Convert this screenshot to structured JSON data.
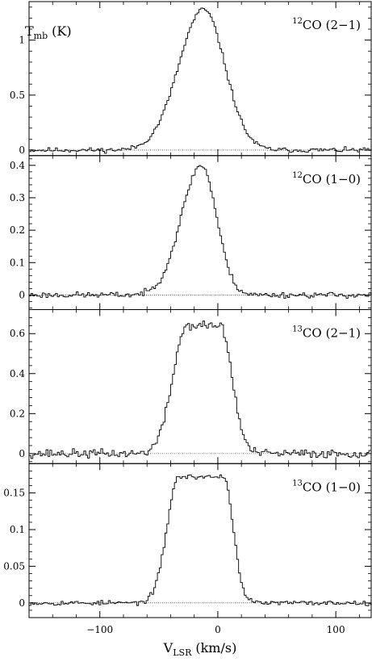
{
  "figure": {
    "ylabel_main": "T",
    "ylabel_sub": "mb",
    "ylabel_unit": "(K)",
    "xlabel_main": "V",
    "xlabel_sub": "LSR",
    "xlabel_unit": "(km/s)"
  },
  "chart_data": [
    {
      "type": "line",
      "title": "",
      "line_name": {
        "iso": "12",
        "species": "CO",
        "trans": "(2−1)"
      },
      "xlabel": "V_LSR (km/s)",
      "ylabel": "T_mb (K)",
      "xlim": [
        -160,
        130
      ],
      "ylim": [
        -0.05,
        1.35
      ],
      "xticks": [
        -100,
        0,
        100
      ],
      "xtick_labels": [
        "−100",
        "0",
        "100"
      ],
      "yticks": [
        0,
        0.5,
        1
      ],
      "ytick_labels": [
        "0",
        "0.5",
        "1"
      ],
      "baseline": 0,
      "profile": {
        "peak": 1.28,
        "center": -12,
        "sigma_left": 21,
        "sigma_right": 18,
        "flat_half": 0,
        "noise": 0.012
      },
      "seed": 11
    },
    {
      "type": "line",
      "title": "",
      "line_name": {
        "iso": "12",
        "species": "CO",
        "trans": "(1−0)"
      },
      "xlabel": "V_LSR (km/s)",
      "ylabel": "T_mb (K)",
      "xlim": [
        -160,
        130
      ],
      "ylim": [
        -0.045,
        0.43
      ],
      "xticks": [
        -100,
        0,
        100
      ],
      "xtick_labels": [
        "−100",
        "0",
        "100"
      ],
      "yticks": [
        0,
        0.1,
        0.2,
        0.3,
        0.4
      ],
      "ytick_labels": [
        "0",
        "0.1",
        "0.2",
        "0.3",
        "0.4"
      ],
      "baseline": 0,
      "profile": {
        "peak": 0.4,
        "center": -14,
        "sigma_left": 17,
        "sigma_right": 13,
        "flat_half": 0,
        "noise": 0.005
      },
      "seed": 23
    },
    {
      "type": "line",
      "title": "",
      "line_name": {
        "iso": "13",
        "species": "CO",
        "trans": "(2−1)"
      },
      "xlabel": "V_LSR (km/s)",
      "ylabel": "T_mb (K)",
      "xlim": [
        -160,
        130
      ],
      "ylim": [
        -0.05,
        0.72
      ],
      "xticks": [
        -100,
        0,
        100
      ],
      "xtick_labels": [
        "−100",
        "0",
        "100"
      ],
      "yticks": [
        0,
        0.2,
        0.4,
        0.6
      ],
      "ytick_labels": [
        "0",
        "0.2",
        "0.4",
        "0.6"
      ],
      "baseline": 0,
      "profile": {
        "peak": 0.64,
        "center": -12,
        "sigma_left": 12,
        "sigma_right": 10,
        "flat_half": 14,
        "noise": 0.012
      },
      "seed": 37
    },
    {
      "type": "line",
      "title": "",
      "line_name": {
        "iso": "13",
        "species": "CO",
        "trans": "(1−0)"
      },
      "xlabel": "V_LSR (km/s)",
      "ylabel": "T_mb (K)",
      "xlim": [
        -160,
        130
      ],
      "ylim": [
        -0.02,
        0.19
      ],
      "xticks": [
        -100,
        0,
        100
      ],
      "xtick_labels": [
        "−100",
        "0",
        "100"
      ],
      "yticks": [
        0,
        0.05,
        0.1,
        0.15
      ],
      "ytick_labels": [
        "0",
        "0.05",
        "0.1",
        "0.15"
      ],
      "baseline": 0,
      "profile": {
        "peak": 0.172,
        "center": -14,
        "sigma_left": 10,
        "sigma_right": 8,
        "flat_half": 19,
        "noise": 0.0018
      },
      "seed": 53
    }
  ]
}
